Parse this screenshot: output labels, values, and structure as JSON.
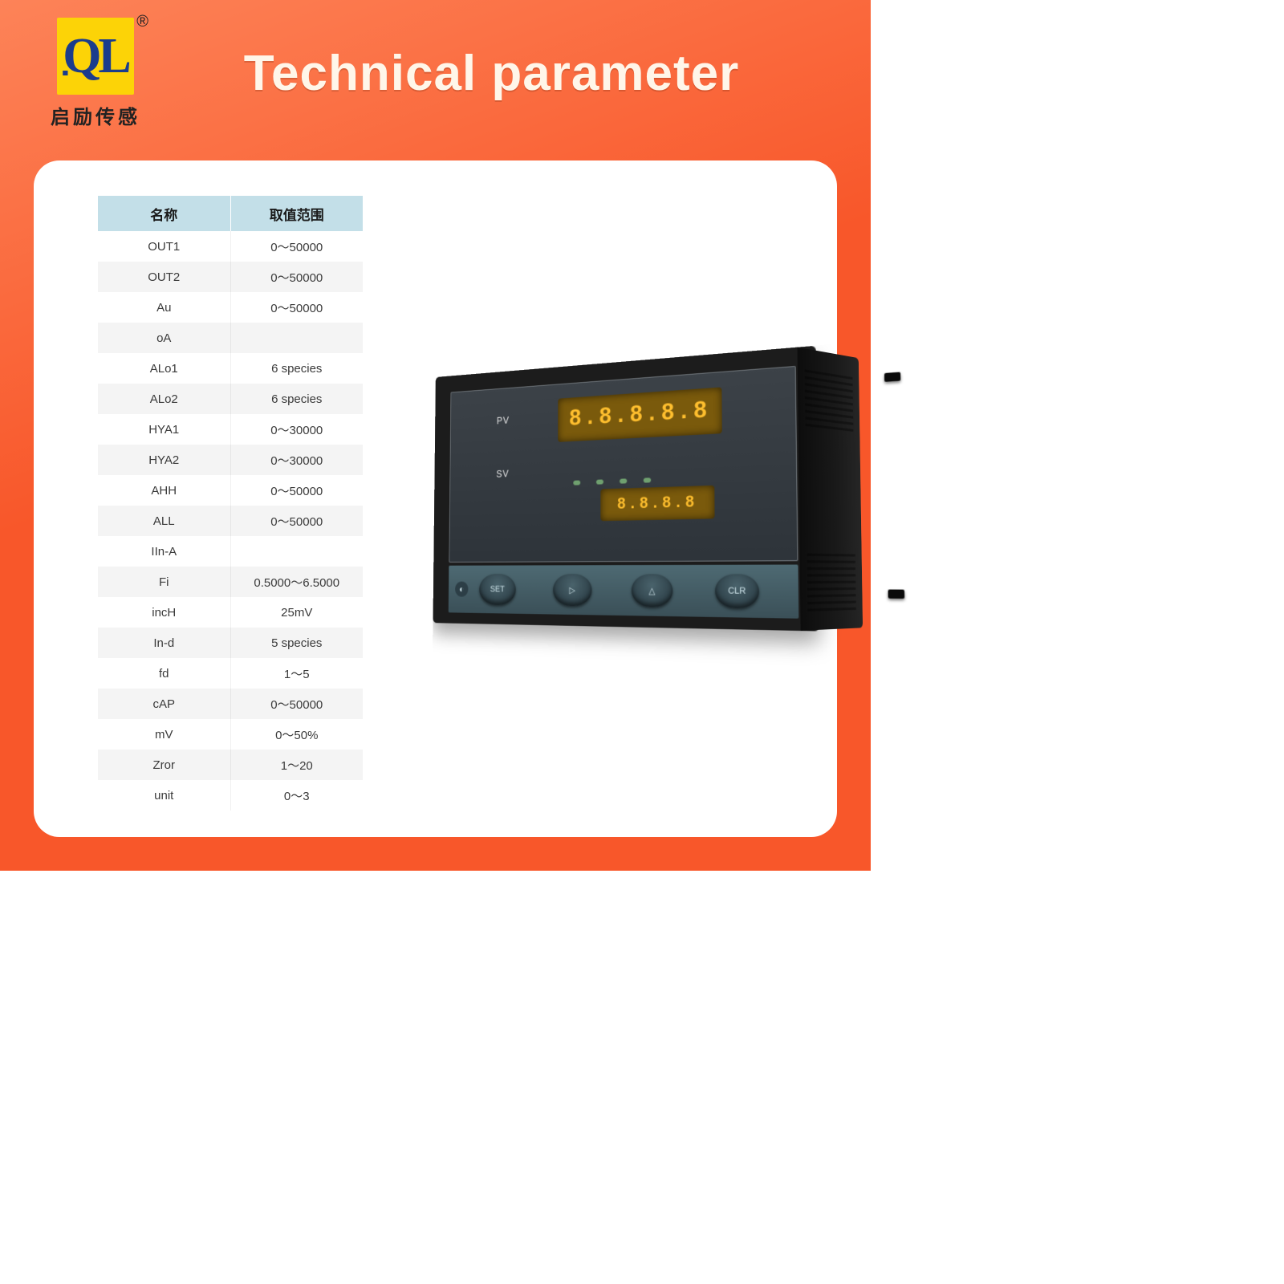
{
  "logo": {
    "text": "QL",
    "caption": "启励传感",
    "registered": "®"
  },
  "title": "Technical parameter",
  "table": {
    "header_bg": "#c3dfe8",
    "row_alt_bg": "#f4f4f4",
    "columns": [
      "名称",
      "取值范围"
    ],
    "rows": [
      [
        "OUT1",
        "0～50000"
      ],
      [
        "OUT2",
        "0～50000"
      ],
      [
        "Au",
        "0～50000"
      ],
      [
        "oA",
        ""
      ],
      [
        "ALo1",
        "6 species"
      ],
      [
        "ALo2",
        "6 species"
      ],
      [
        "HYA1",
        "0～30000"
      ],
      [
        "HYA2",
        "0～30000"
      ],
      [
        "AHH",
        "0～50000"
      ],
      [
        "ALL",
        "0～50000"
      ],
      [
        "IIn-A",
        ""
      ],
      [
        "Fi",
        "0.5000～6.5000"
      ],
      [
        "incH",
        "25mV"
      ],
      [
        "In-d",
        "5 species"
      ],
      [
        "fd",
        "1～5"
      ],
      [
        "cAP",
        "0～50000"
      ],
      [
        "mV",
        "0～50%"
      ],
      [
        "Zror",
        "1～20"
      ],
      [
        "unit",
        "0～3"
      ]
    ]
  },
  "device": {
    "type": "panel-meter-illustration",
    "body_color": "#1c1c1c",
    "panel_color": "#343a40",
    "button_strip_color": "#466069",
    "pv_label": "PV",
    "sv_label": "SV",
    "pv_display": "8.8.8.8.8",
    "sv_display": "8.8.8.8",
    "display_bg": "#7a5a0c",
    "display_fg": "#ffbf2e",
    "pv_fontsize": 30,
    "sv_fontsize": 20,
    "led_count": 4,
    "led_color": "#6fa06f",
    "buttons": [
      "SET",
      "▷",
      "△",
      "CLR"
    ]
  },
  "colors": {
    "page_gradient_from": "#fd8358",
    "page_gradient_to": "#f8572a",
    "card_bg": "#ffffff",
    "title_color": "#fff6e9",
    "logo_bg": "#fcd307",
    "logo_fg": "#1b3c8c"
  }
}
